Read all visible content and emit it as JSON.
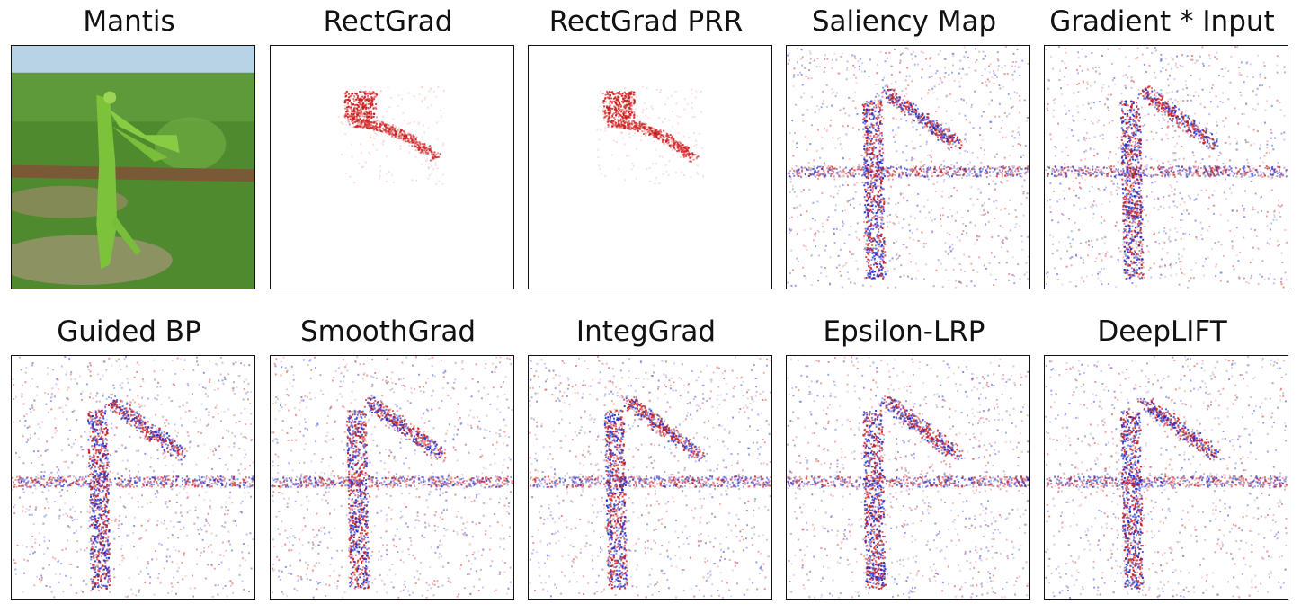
{
  "figure": {
    "panels": [
      {
        "title": "Mantis",
        "kind": "photo"
      },
      {
        "title": "RectGrad",
        "kind": "sparse"
      },
      {
        "title": "RectGrad PRR",
        "kind": "sparse"
      },
      {
        "title": "Saliency Map",
        "kind": "noisy"
      },
      {
        "title": "Gradient * Input",
        "kind": "noisy"
      },
      {
        "title": "Guided BP",
        "kind": "noisy"
      },
      {
        "title": "SmoothGrad",
        "kind": "noisy"
      },
      {
        "title": "IntegGrad",
        "kind": "noisy"
      },
      {
        "title": "Epsilon-LRP",
        "kind": "noisy"
      },
      {
        "title": "DeepLIFT",
        "kind": "noisy"
      }
    ],
    "colors": {
      "positive": "#cc1a1a",
      "negative": "#1a2acc",
      "grass": "#4f8a2e",
      "mantis": "#7cc23a",
      "branch": "#7a5a36"
    }
  }
}
